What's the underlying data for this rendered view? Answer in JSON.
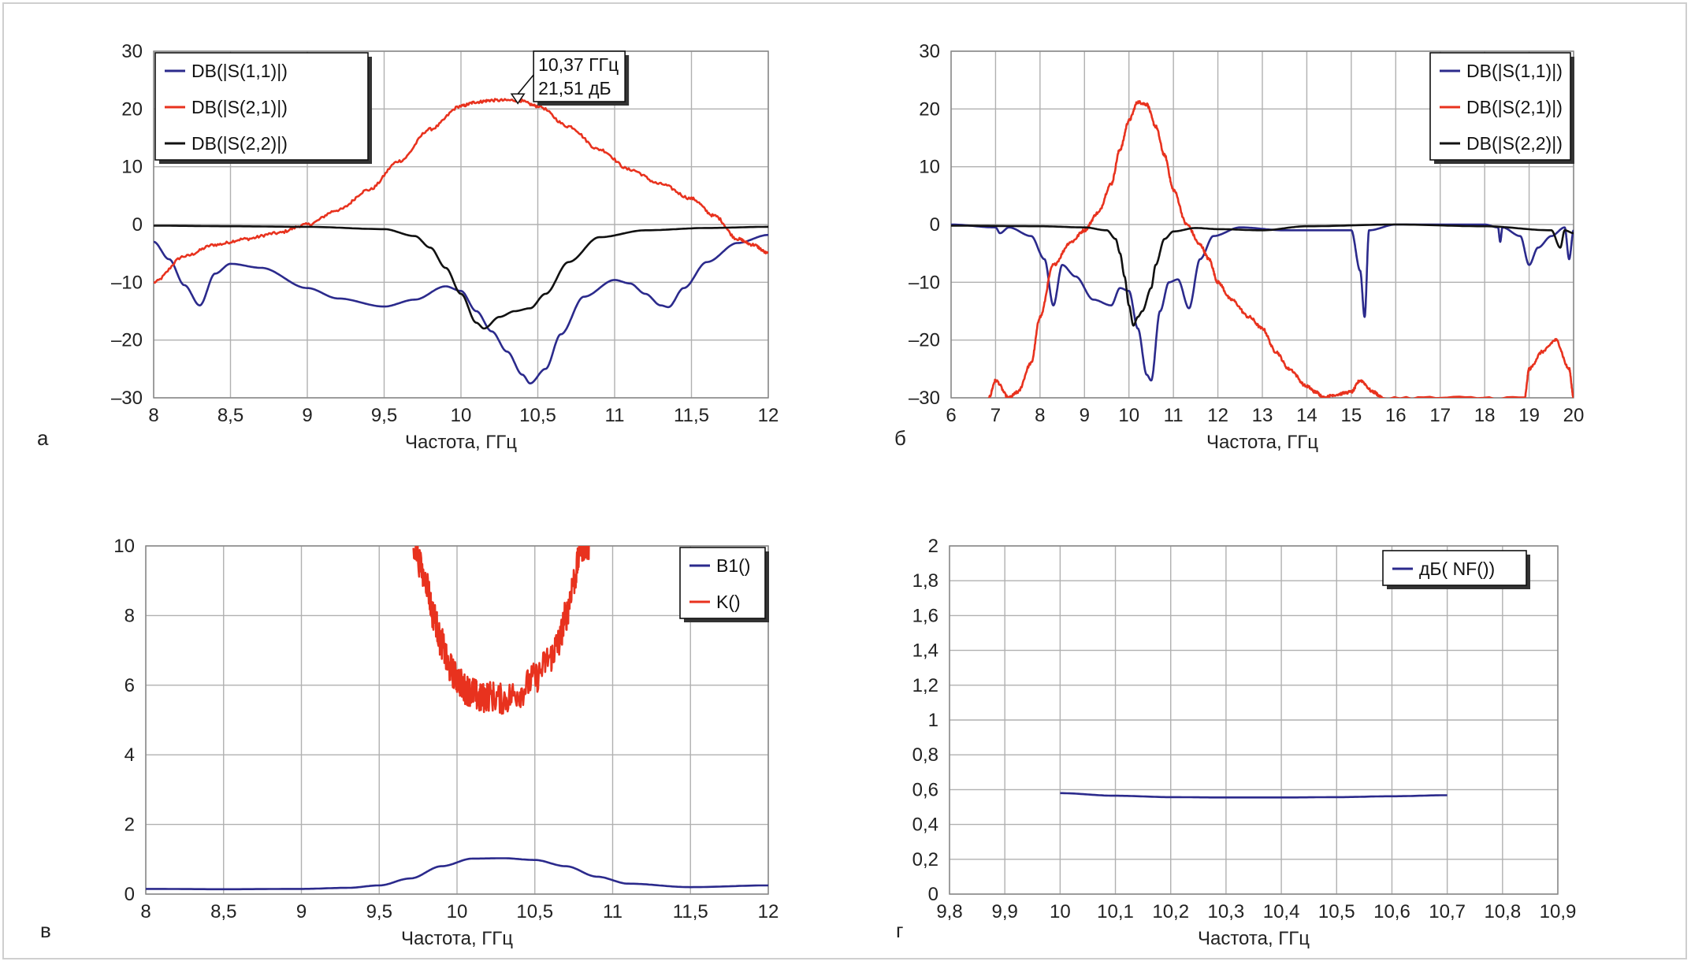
{
  "figure": {
    "colors": {
      "blue": "#2b2a8c",
      "red": "#e8321e",
      "black": "#111111",
      "grid": "#b0b0b0",
      "frame": "#cfcfcf"
    }
  },
  "chart_data": [
    {
      "id": "a",
      "panel_label": "а",
      "type": "line",
      "xlabel": "Частота, ГГц",
      "xlim": [
        8,
        12
      ],
      "ylim": [
        -30,
        30
      ],
      "xticks": [
        8,
        8.5,
        9,
        9.5,
        10,
        10.5,
        11,
        11.5,
        12
      ],
      "xtick_labels": [
        "8",
        "8,5",
        "9",
        "9,5",
        "10",
        "10,5",
        "11",
        "11,5",
        "12"
      ],
      "yticks": [
        -30,
        -20,
        -10,
        0,
        10,
        20,
        30
      ],
      "ytick_labels": [
        "–30",
        "–20",
        "–10",
        "0",
        "10",
        "20",
        "30"
      ],
      "grid": true,
      "legend_position": "top-left",
      "series": [
        {
          "name": "DB(|S(1,1)|)",
          "color": "#2b2a8c",
          "x": [
            8,
            8.1,
            8.2,
            8.3,
            8.4,
            8.5,
            8.7,
            9,
            9.2,
            9.5,
            9.7,
            9.9,
            10,
            10.1,
            10.2,
            10.3,
            10.4,
            10.45,
            10.55,
            10.65,
            10.8,
            11,
            11.1,
            11.2,
            11.3,
            11.35,
            11.45,
            11.6,
            11.8,
            12
          ],
          "y": [
            -3,
            -6,
            -10.5,
            -14,
            -8.5,
            -6.8,
            -7.5,
            -11,
            -12.8,
            -14.2,
            -13,
            -10.7,
            -11.5,
            -15,
            -18.5,
            -22,
            -26,
            -27.5,
            -25,
            -19,
            -12.5,
            -9.6,
            -10.2,
            -12,
            -14,
            -14.3,
            -11,
            -6.5,
            -3.2,
            -1.8
          ]
        },
        {
          "name": "DB(|S(2,1)|)",
          "color": "#e8321e",
          "x": [
            8,
            8.2,
            8.4,
            8.6,
            8.8,
            9,
            9.2,
            9.4,
            9.6,
            9.8,
            10,
            10.1,
            10.2,
            10.37,
            10.5,
            10.7,
            10.9,
            11.1,
            11.3,
            11.5,
            11.65,
            11.8,
            11.9,
            12
          ],
          "y": [
            -10,
            -5.5,
            -3.5,
            -2.5,
            -1.5,
            0,
            2.5,
            6,
            11,
            16.5,
            20.5,
            21.2,
            21.5,
            21.5,
            20.5,
            17,
            13,
            9.5,
            7,
            4.5,
            1.5,
            -2.5,
            -3.5,
            -5
          ]
        },
        {
          "name": "DB(|S(2,2)|)",
          "color": "#111111",
          "x": [
            8,
            8.5,
            9,
            9.5,
            9.7,
            9.8,
            9.9,
            10,
            10.1,
            10.15,
            10.25,
            10.35,
            10.45,
            10.55,
            10.7,
            10.9,
            11.2,
            11.6,
            12
          ],
          "y": [
            -0.2,
            -0.3,
            -0.4,
            -0.8,
            -2,
            -4,
            -7.5,
            -12,
            -17,
            -18,
            -16,
            -15,
            -14.5,
            -12,
            -6.5,
            -2.2,
            -1,
            -0.6,
            -0.4
          ]
        }
      ],
      "marker": {
        "x": 10.37,
        "y": 21.51,
        "label_line1": "10,37 ГГц",
        "label_line2": "21,51 дБ"
      }
    },
    {
      "id": "b",
      "panel_label": "б",
      "type": "line",
      "xlabel": "Частота, ГГц",
      "xlim": [
        6,
        20
      ],
      "ylim": [
        -30,
        30
      ],
      "xticks": [
        6,
        7,
        8,
        9,
        10,
        11,
        12,
        13,
        14,
        15,
        16,
        17,
        18,
        19,
        20
      ],
      "xtick_labels": [
        "6",
        "7",
        "8",
        "9",
        "10",
        "11",
        "12",
        "13",
        "14",
        "15",
        "16",
        "17",
        "18",
        "19",
        "20"
      ],
      "yticks": [
        -30,
        -20,
        -10,
        0,
        10,
        20,
        30
      ],
      "ytick_labels": [
        "–30",
        "–20",
        "–10",
        "0",
        "10",
        "20",
        "30"
      ],
      "grid": true,
      "legend_position": "top-right",
      "series": [
        {
          "name": "DB(|S(1,1)|)",
          "color": "#2b2a8c",
          "x": [
            6,
            7,
            7.1,
            7.3,
            7.8,
            8.1,
            8.3,
            8.5,
            8.8,
            9.2,
            9.6,
            9.8,
            10,
            10.2,
            10.4,
            10.5,
            10.7,
            10.9,
            11.1,
            11.35,
            11.6,
            11.9,
            12.5,
            13.5,
            15,
            15.2,
            15.3,
            15.4,
            16,
            18,
            18.3,
            18.35,
            18.4,
            18.8,
            19,
            19.2,
            19.5,
            19.8,
            19.9,
            20
          ],
          "y": [
            0,
            -0.5,
            -1.5,
            -0.5,
            -2,
            -6,
            -14,
            -7,
            -9,
            -13,
            -14,
            -11,
            -11.5,
            -18,
            -26,
            -27,
            -15,
            -10,
            -9.5,
            -14.5,
            -6,
            -2,
            -0.5,
            -1,
            -1,
            -8,
            -16,
            -1,
            0,
            0,
            -0.5,
            -3,
            -0.5,
            -2,
            -7,
            -4,
            -2,
            -0.5,
            -6,
            -1
          ]
        },
        {
          "name": "DB(|S(2,1)|)",
          "color": "#e8321e",
          "x": [
            6.85,
            7,
            7.3,
            7.5,
            7.8,
            8,
            8.3,
            8.7,
            9,
            9.3,
            9.6,
            9.8,
            10,
            10.2,
            10.4,
            10.6,
            10.8,
            11,
            11.3,
            11.6,
            11.8,
            12,
            12.3,
            12.7,
            13,
            13.3,
            13.6,
            14,
            14.2,
            14.4,
            14.6,
            15,
            15.2,
            15.5,
            15.7,
            18.9,
            19,
            19.3,
            19.6,
            19.9,
            20
          ],
          "y": [
            -30,
            -27,
            -30,
            -29,
            -24,
            -16,
            -7,
            -3,
            -1,
            2,
            7,
            13,
            18,
            21.2,
            20.8,
            17,
            12,
            6,
            0,
            -3.5,
            -6,
            -10,
            -13,
            -16,
            -18,
            -22,
            -25,
            -28,
            -29,
            -30,
            -29.5,
            -29,
            -27,
            -29,
            -30,
            -30,
            -25,
            -22,
            -20,
            -25,
            -30
          ]
        },
        {
          "name": "DB(|S(2,2)|)",
          "color": "#111111",
          "x": [
            6,
            8,
            9,
            9.5,
            9.7,
            9.8,
            9.9,
            10,
            10.1,
            10.2,
            10.3,
            10.5,
            10.6,
            10.8,
            11,
            11.5,
            12,
            13,
            14,
            16,
            18,
            19.5,
            19.7,
            19.8,
            20
          ],
          "y": [
            -0.2,
            -0.3,
            -0.5,
            -1,
            -2.5,
            -5,
            -9,
            -14,
            -17.5,
            -16,
            -15,
            -11,
            -7,
            -2.5,
            -1.2,
            -0.6,
            -0.8,
            -1,
            -0.3,
            0,
            -0.3,
            -1,
            -4,
            -1,
            -1.5
          ]
        }
      ]
    },
    {
      "id": "v",
      "panel_label": "в",
      "type": "line",
      "xlabel": "Частота, ГГц",
      "xlim": [
        8,
        12
      ],
      "ylim": [
        0,
        10
      ],
      "xticks": [
        8,
        8.5,
        9,
        9.5,
        10,
        10.5,
        11,
        11.5,
        12
      ],
      "xtick_labels": [
        "8",
        "8,5",
        "9",
        "9,5",
        "10",
        "10,5",
        "11",
        "11,5",
        "12"
      ],
      "yticks": [
        0,
        2,
        4,
        6,
        8,
        10
      ],
      "ytick_labels": [
        "0",
        "2",
        "4",
        "6",
        "8",
        "10"
      ],
      "grid": true,
      "legend_position": "top-right",
      "series": [
        {
          "name": "B1()",
          "color": "#2b2a8c",
          "x": [
            8,
            8.5,
            9,
            9.3,
            9.5,
            9.7,
            9.9,
            10.1,
            10.3,
            10.5,
            10.7,
            10.9,
            11.1,
            11.5,
            12
          ],
          "y": [
            0.15,
            0.14,
            0.15,
            0.18,
            0.25,
            0.45,
            0.8,
            1.02,
            1.03,
            0.98,
            0.8,
            0.5,
            0.3,
            0.2,
            0.25
          ]
        },
        {
          "name": "K()",
          "color": "#e8321e",
          "x": [
            9.72,
            9.8,
            9.85,
            9.9,
            9.95,
            10,
            10.05,
            10.1,
            10.15,
            10.2,
            10.3,
            10.4,
            10.5,
            10.6,
            10.65,
            10.7,
            10.75,
            10.8,
            10.85
          ],
          "y": [
            10,
            9,
            8,
            7.2,
            6.5,
            6.2,
            5.9,
            5.8,
            5.6,
            5.7,
            5.6,
            5.8,
            6.2,
            6.8,
            7.2,
            8,
            9,
            10,
            10
          ]
        }
      ]
    },
    {
      "id": "g",
      "panel_label": "г",
      "type": "line",
      "xlabel": "Частота, ГГц",
      "xlim": [
        9.8,
        10.9
      ],
      "ylim": [
        0,
        2
      ],
      "xticks": [
        9.8,
        9.9,
        10,
        10.1,
        10.2,
        10.3,
        10.4,
        10.5,
        10.6,
        10.7,
        10.8,
        10.9
      ],
      "xtick_labels": [
        "9,8",
        "9,9",
        "10",
        "10,1",
        "10,2",
        "10,3",
        "10,4",
        "10,5",
        "10,6",
        "10,7",
        "10,8",
        "10,9"
      ],
      "yticks": [
        0,
        0.2,
        0.4,
        0.6,
        0.8,
        1,
        1.2,
        1.4,
        1.6,
        1.8,
        2
      ],
      "ytick_labels": [
        "0",
        "0,2",
        "0,4",
        "0,6",
        "0,8",
        "1",
        "1,2",
        "1,4",
        "1,6",
        "1,8",
        "2"
      ],
      "grid": true,
      "legend_position": "top-right",
      "series": [
        {
          "name": "дБ( NF())",
          "color": "#2b2a8c",
          "x": [
            10,
            10.1,
            10.2,
            10.3,
            10.4,
            10.5,
            10.6,
            10.7
          ],
          "y": [
            0.58,
            0.565,
            0.557,
            0.555,
            0.555,
            0.557,
            0.562,
            0.568
          ]
        }
      ]
    }
  ]
}
